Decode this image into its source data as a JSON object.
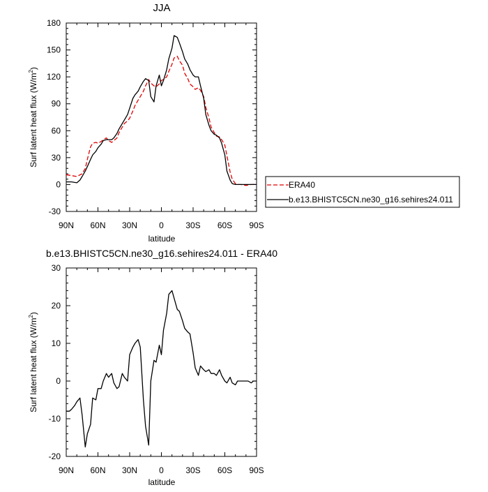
{
  "chart_data": [
    {
      "type": "line",
      "title": "JJA",
      "xlabel": "latitude",
      "ylabel": "Surf latent heat flux (W/m",
      "ylabel_sup": "2",
      "ylabel_tail": ")",
      "xlim": [
        90,
        -90
      ],
      "ylim": [
        -30,
        180
      ],
      "xticks": [
        90,
        60,
        30,
        0,
        -30,
        -60,
        -90
      ],
      "xtick_labels": [
        "90N",
        "60N",
        "30N",
        "0",
        "30S",
        "60S",
        "90S"
      ],
      "yticks": [
        -30,
        0,
        30,
        60,
        90,
        120,
        150,
        180
      ],
      "ytick_labels": [
        "-30",
        "0",
        "30",
        "60",
        "90",
        "120",
        "150",
        "180"
      ],
      "legend": "outside-right",
      "series": [
        {
          "name": "ERA40",
          "color": "#e00000",
          "dash": true,
          "x": [
            90,
            85,
            80,
            75,
            72,
            70,
            67,
            65,
            62,
            60,
            57,
            55,
            52,
            50,
            47,
            45,
            42,
            40,
            37,
            35,
            32,
            30,
            27,
            25,
            22,
            20,
            17,
            15,
            12,
            10,
            7,
            5,
            2,
            0,
            -2,
            -5,
            -7,
            -10,
            -12,
            -15,
            -17,
            -20,
            -22,
            -25,
            -27,
            -30,
            -32,
            -35,
            -37,
            -40,
            -42,
            -45,
            -47,
            -50,
            -52,
            -55,
            -57,
            -60,
            -62,
            -65,
            -67,
            -70,
            -72,
            -75,
            -80,
            -85,
            -90
          ],
          "y": [
            11,
            10,
            9,
            12,
            18,
            28,
            42,
            46,
            47,
            46,
            48,
            50,
            52,
            49,
            47,
            49,
            52,
            58,
            64,
            68,
            71,
            74,
            82,
            88,
            94,
            98,
            104,
            110,
            117,
            113,
            110,
            109,
            112,
            116,
            117,
            120,
            126,
            134,
            141,
            143,
            138,
            133,
            124,
            118,
            112,
            109,
            106,
            108,
            105,
            98,
            86,
            74,
            64,
            58,
            54,
            53,
            50,
            44,
            32,
            14,
            6,
            1,
            0,
            0,
            -1,
            0,
            0
          ]
        },
        {
          "name": "b.e13.BHISTC5CN.ne30_g16.sehires24.011",
          "color": "#000000",
          "dash": false,
          "x": [
            90,
            85,
            80,
            77,
            75,
            72,
            70,
            67,
            65,
            62,
            60,
            57,
            55,
            52,
            50,
            47,
            45,
            42,
            40,
            37,
            35,
            32,
            30,
            27,
            25,
            22,
            20,
            17,
            15,
            12,
            10,
            7,
            5,
            2,
            0,
            -2,
            -5,
            -7,
            -10,
            -12,
            -15,
            -17,
            -20,
            -22,
            -25,
            -27,
            -30,
            -32,
            -35,
            -37,
            -40,
            -42,
            -45,
            -47,
            -50,
            -52,
            -55,
            -57,
            -60,
            -62,
            -65,
            -67,
            -70,
            -72,
            -75,
            -80,
            -85,
            -90
          ],
          "y": [
            3,
            3,
            2,
            5,
            9,
            15,
            20,
            28,
            33,
            37,
            41,
            45,
            49,
            50,
            50,
            50,
            52,
            57,
            62,
            68,
            72,
            78,
            85,
            96,
            100,
            104,
            109,
            115,
            118,
            116,
            98,
            92,
            110,
            122,
            110,
            116,
            128,
            140,
            152,
            166,
            164,
            158,
            148,
            140,
            134,
            128,
            122,
            120,
            120,
            110,
            96,
            78,
            66,
            60,
            56,
            55,
            52,
            46,
            33,
            15,
            5,
            1,
            0,
            0,
            0,
            0,
            0,
            0
          ]
        }
      ]
    },
    {
      "type": "line",
      "title": "b.e13.BHISTC5CN.ne30_g16.sehires24.011 - ERA40",
      "xlabel": "latitude",
      "ylabel": "Surf latent heat flux (W/m",
      "ylabel_sup": "2",
      "ylabel_tail": ")",
      "xlim": [
        90,
        -90
      ],
      "ylim": [
        -20,
        30
      ],
      "xticks": [
        90,
        60,
        30,
        0,
        -30,
        -60,
        -90
      ],
      "xtick_labels": [
        "90N",
        "60N",
        "30N",
        "0",
        "30S",
        "60S",
        "90S"
      ],
      "yticks": [
        -20,
        -10,
        0,
        10,
        20,
        30
      ],
      "ytick_labels": [
        "-20",
        "-10",
        "0",
        "10",
        "20",
        "30"
      ],
      "series": [
        {
          "color": "#000000",
          "dash": false,
          "x": [
            90,
            87,
            85,
            82,
            80,
            77,
            75,
            72,
            70,
            67,
            65,
            62,
            60,
            57,
            55,
            52,
            50,
            47,
            45,
            42,
            40,
            37,
            35,
            32,
            30,
            27,
            25,
            22,
            20,
            17,
            15,
            12,
            10,
            7,
            5,
            2,
            0,
            -2,
            -5,
            -7,
            -10,
            -12,
            -15,
            -17,
            -20,
            -22,
            -25,
            -27,
            -30,
            -32,
            -35,
            -37,
            -40,
            -42,
            -45,
            -47,
            -50,
            -52,
            -55,
            -57,
            -60,
            -62,
            -65,
            -67,
            -70,
            -72,
            -75,
            -77,
            -80,
            -82,
            -85,
            -87,
            -90
          ],
          "y": [
            -8,
            -8,
            -7.5,
            -6.5,
            -5.5,
            -4.5,
            -9,
            -17.5,
            -14,
            -11.5,
            -4.5,
            -5,
            -2,
            -2,
            0,
            2,
            1,
            2,
            -0.5,
            -2,
            -1.5,
            2,
            1,
            0,
            7,
            9,
            10,
            11,
            9,
            -5,
            -12,
            -17,
            0,
            5.5,
            5,
            9.5,
            7,
            13.5,
            18,
            23,
            24,
            22,
            19,
            18.5,
            16,
            14,
            13,
            12.5,
            7.5,
            3.5,
            1.5,
            4,
            3,
            2.5,
            3,
            2,
            2,
            1.5,
            3,
            1.5,
            0,
            -0.5,
            1,
            -0.5,
            -1,
            0,
            0,
            0,
            0,
            0,
            -0.5,
            0,
            0
          ]
        }
      ]
    }
  ]
}
